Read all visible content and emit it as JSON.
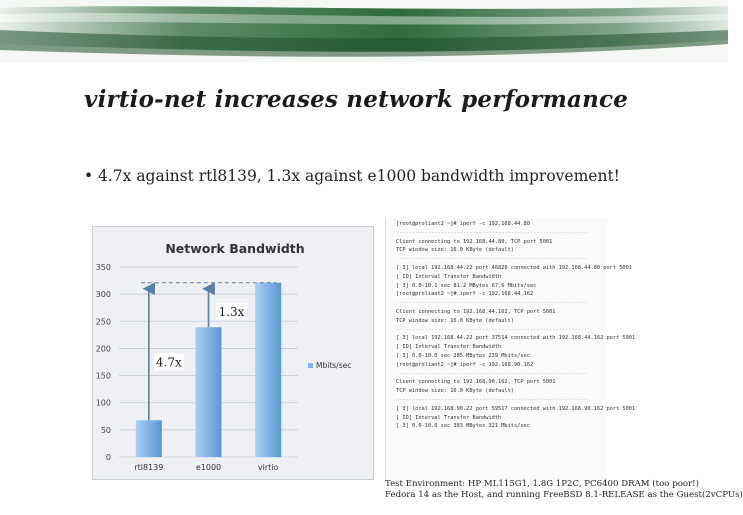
{
  "slide": {
    "title": "virtio-net increases network performance",
    "bullet": "4.7x against rtl8139, 1.3x against e1000 bandwidth improvement!"
  },
  "colors": {
    "banner_green": "#2f6b3c",
    "bar_blue": "#7fb4e6",
    "arrow_blue": "#5a7fa8"
  },
  "chart_data": {
    "type": "bar",
    "title": "Network Bandwidth",
    "categories": [
      "rtl8139",
      "e1000",
      "virtio"
    ],
    "series": [
      {
        "name": "Mbits/sec",
        "values": [
          67.6,
          239,
          321
        ]
      }
    ],
    "ylim": [
      0,
      350
    ],
    "yticks": [
      0,
      50,
      100,
      150,
      200,
      250,
      300,
      350
    ],
    "legend": "right",
    "annotations": [
      "4.7x",
      "1.3x"
    ]
  },
  "terminal": {
    "lines": [
      "[root@proliant2 ~]# iperf -c 192.168.44.80",
      "------------------------------------------------------------",
      "Client connecting to 192.168.44.80, TCP port 5001",
      "TCP window size: 16.0 KByte (default)",
      "------------------------------------------------------------",
      "[ 3] local 192.168.44.22 port 46828 connected with 192.168.44.80 port 5001",
      "[ ID] Interval       Transfer     Bandwidth",
      "[ 3]  0.0-10.1 sec  81.2 MBytes  67.6 Mbits/sec",
      "[root@proliant2 ~]# iperf -c 192.168.44.162",
      "------------------------------------------------------------",
      "Client connecting to 192.168.44.162, TCP port 5001",
      "TCP window size: 16.0 KByte (default)",
      "------------------------------------------------------------",
      "[ 3] local 192.168.44.22 port 37514 connected with 192.168.44.162 port 5001",
      "[ ID] Interval       Transfer     Bandwidth",
      "[ 3]  0.0-10.0 sec  285 MBytes  239 Mbits/sec",
      "[root@proliant2 ~]# iperf -c 192.168.90.162",
      "------------------------------------------------------------",
      "Client connecting to 192.168.90.162, TCP port 5001",
      "TCP window size: 16.0 KByte (default)",
      "------------------------------------------------------------",
      "[ 3] local 192.168.90.22 port 59517 connected with 192.168.90.162 port 5001",
      "[ ID] Interval       Transfer     Bandwidth",
      "[ 3]  0.0-10.0 sec  383 MBytes  321 Mbits/sec"
    ]
  },
  "footnote": {
    "line1": "Test Environment: HP ML115G1, 1.8G 1P2C, PC6400 DRAM (too poor!)",
    "line2": "Fedora 14 as the Host, and running FreeBSD 8.1-RELEASE as the Guest(2vCPUs)"
  }
}
